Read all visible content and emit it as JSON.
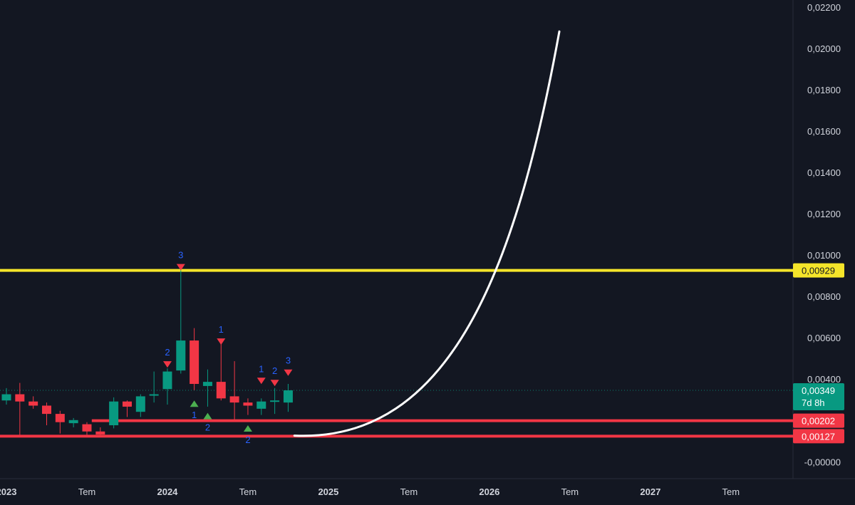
{
  "colors": {
    "background": "#131722",
    "axis_text": "#d1d4dc",
    "bull": "#089981",
    "bear": "#f23645",
    "resistance": "#f5e52a",
    "support": "#f23645",
    "curve": "#ffffff",
    "marker_number": "#2962ff",
    "marker_up": "#4caf50",
    "marker_down": "#f23645"
  },
  "chart_data": {
    "type": "candlestick",
    "y_axis": {
      "range": [
        -0.0003,
        0.0222
      ],
      "ticks": [
        "0,02200",
        "0,02000",
        "0,01800",
        "0,01600",
        "0,01400",
        "0,01200",
        "0,01000",
        "0,00800",
        "0,00600",
        "0,00400",
        "-0,00000"
      ],
      "tick_values": [
        0.022,
        0.02,
        0.018,
        0.016,
        0.014,
        0.012,
        0.01,
        0.008,
        0.006,
        0.004,
        0.0
      ]
    },
    "x_axis": {
      "ticks": [
        {
          "label": "2023",
          "date": "2023-01",
          "bold": true
        },
        {
          "label": "Tem",
          "date": "2023-07",
          "bold": false
        },
        {
          "label": "2024",
          "date": "2024-01",
          "bold": true
        },
        {
          "label": "Tem",
          "date": "2024-07",
          "bold": false
        },
        {
          "label": "2025",
          "date": "2025-01",
          "bold": true
        },
        {
          "label": "Tem",
          "date": "2025-07",
          "bold": false
        },
        {
          "label": "2026",
          "date": "2026-01",
          "bold": true
        },
        {
          "label": "Tem",
          "date": "2026-07",
          "bold": false
        },
        {
          "label": "2027",
          "date": "2027-01",
          "bold": true
        },
        {
          "label": "Tem",
          "date": "2027-07",
          "bold": false
        }
      ]
    },
    "candles": [
      {
        "date": "2022-12",
        "o": 0.003,
        "h": 0.0037,
        "l": 0.002,
        "c": 0.00245
      },
      {
        "date": "2023-01",
        "o": 0.003,
        "h": 0.0036,
        "l": 0.0028,
        "c": 0.0033
      },
      {
        "date": "2023-02",
        "o": 0.0033,
        "h": 0.00385,
        "l": 0.0013,
        "c": 0.00295
      },
      {
        "date": "2023-03",
        "o": 0.00295,
        "h": 0.0032,
        "l": 0.0026,
        "c": 0.00275
      },
      {
        "date": "2023-04",
        "o": 0.00275,
        "h": 0.0029,
        "l": 0.0018,
        "c": 0.00235
      },
      {
        "date": "2023-05",
        "o": 0.00235,
        "h": 0.0025,
        "l": 0.0014,
        "c": 0.00195
      },
      {
        "date": "2023-06",
        "o": 0.0019,
        "h": 0.00215,
        "l": 0.0017,
        "c": 0.00205
      },
      {
        "date": "2023-07",
        "o": 0.00185,
        "h": 0.00195,
        "l": 0.0013,
        "c": 0.0015
      },
      {
        "date": "2023-08",
        "o": 0.0015,
        "h": 0.0017,
        "l": 0.00127,
        "c": 0.00135
      },
      {
        "date": "2023-09",
        "o": 0.0018,
        "h": 0.00315,
        "l": 0.00165,
        "c": 0.00295
      },
      {
        "date": "2023-10",
        "o": 0.00295,
        "h": 0.003,
        "l": 0.0022,
        "c": 0.0027
      },
      {
        "date": "2023-11",
        "o": 0.00245,
        "h": 0.0033,
        "l": 0.0022,
        "c": 0.0032
      },
      {
        "date": "2023-12",
        "o": 0.00325,
        "h": 0.0044,
        "l": 0.0029,
        "c": 0.0033
      },
      {
        "date": "2024-01",
        "o": 0.00355,
        "h": 0.00455,
        "l": 0.0028,
        "c": 0.0044
      },
      {
        "date": "2024-02",
        "o": 0.00445,
        "h": 0.00929,
        "l": 0.0043,
        "c": 0.0059
      },
      {
        "date": "2024-03",
        "o": 0.0059,
        "h": 0.0065,
        "l": 0.0035,
        "c": 0.0038
      },
      {
        "date": "2024-04",
        "o": 0.0037,
        "h": 0.0045,
        "l": 0.0027,
        "c": 0.0039
      },
      {
        "date": "2024-05",
        "o": 0.0039,
        "h": 0.0058,
        "l": 0.003,
        "c": 0.0031
      },
      {
        "date": "2024-06",
        "o": 0.0032,
        "h": 0.0049,
        "l": 0.002,
        "c": 0.0029
      },
      {
        "date": "2024-07",
        "o": 0.0029,
        "h": 0.0031,
        "l": 0.0023,
        "c": 0.00275
      },
      {
        "date": "2024-08",
        "o": 0.0026,
        "h": 0.0031,
        "l": 0.0023,
        "c": 0.00295
      },
      {
        "date": "2024-09",
        "o": 0.00295,
        "h": 0.0036,
        "l": 0.00235,
        "c": 0.003
      },
      {
        "date": "2024-10",
        "o": 0.0029,
        "h": 0.0038,
        "l": 0.00245,
        "c": 0.00349
      }
    ],
    "signal_markers": [
      {
        "date": "2024-02",
        "label": "3",
        "kind": "down",
        "price": 0.0096
      },
      {
        "date": "2024-01",
        "label": "2",
        "kind": "down",
        "price": 0.0049
      },
      {
        "date": "2024-05",
        "label": "1",
        "kind": "down",
        "price": 0.006
      },
      {
        "date": "2024-08",
        "label": "1",
        "kind": "down",
        "price": 0.0041
      },
      {
        "date": "2024-09",
        "label": "2",
        "kind": "down",
        "price": 0.004
      },
      {
        "date": "2024-10",
        "label": "3",
        "kind": "down",
        "price": 0.0045
      },
      {
        "date": "2024-03",
        "label": "1",
        "kind": "up",
        "price": 0.003
      },
      {
        "date": "2024-04",
        "label": "2",
        "kind": "up",
        "price": 0.0024
      },
      {
        "date": "2024-07",
        "label": "2",
        "kind": "up",
        "price": 0.0018
      }
    ],
    "horizontal_lines": [
      {
        "name": "resistance",
        "value": 0.00929,
        "label": "0,00929",
        "color": "#f5e52a",
        "start_date": "2022-12"
      },
      {
        "name": "support-upper",
        "value": 0.00202,
        "label": "0,00202",
        "color": "#f23645",
        "start_date": "2023-08"
      },
      {
        "name": "support-lower",
        "value": 0.00127,
        "label": "0,00127",
        "color": "#f23645",
        "start_date": "2022-12"
      }
    ],
    "last_price": {
      "value": 0.00349,
      "label": "0,00349",
      "countdown": "7d 8h"
    },
    "projection_curve": {
      "start": {
        "date": "2024-11",
        "value": 0.0013
      },
      "end": {
        "date": "2026-06",
        "value": 0.02085
      }
    }
  }
}
